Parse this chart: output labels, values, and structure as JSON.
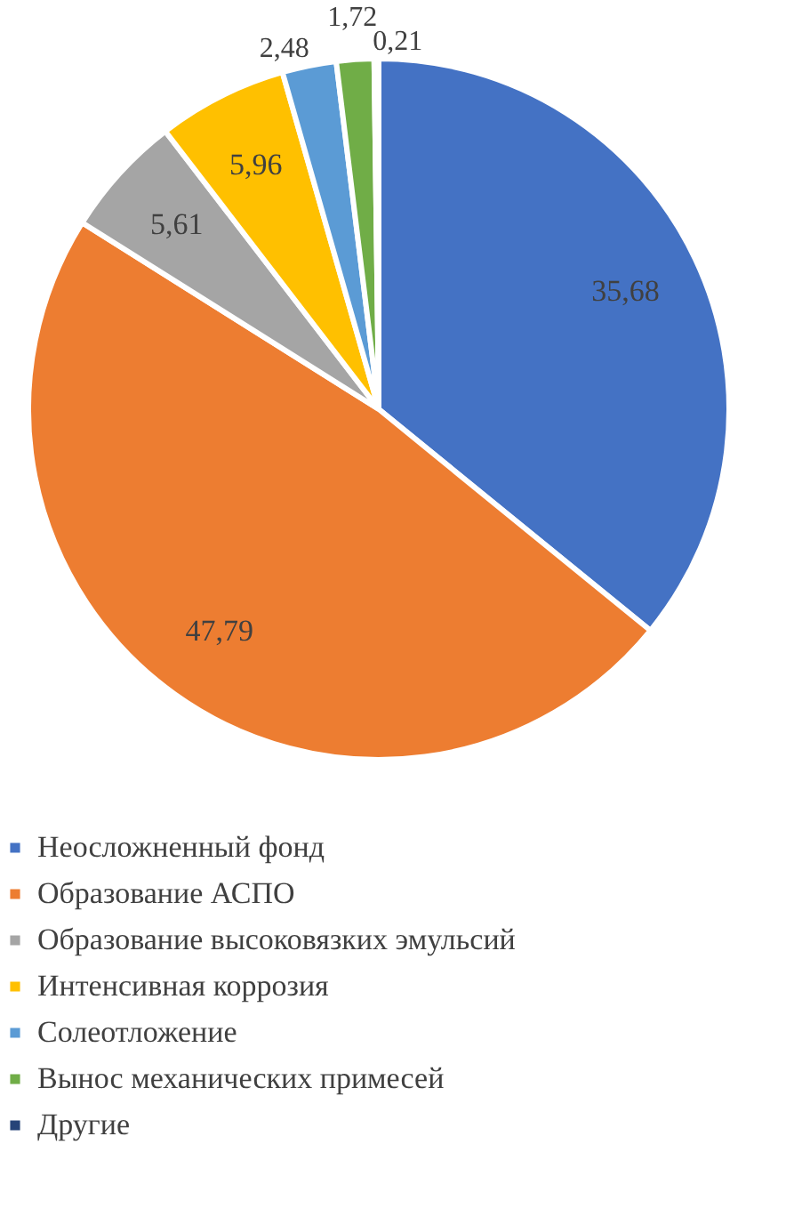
{
  "chart_data": {
    "type": "pie",
    "categories": [
      "Неосложненный фонд",
      "Образование АСПО",
      "Образование высоковязких эмульсий",
      "Интенсивная коррозия",
      "Солеотложение",
      "Вынос механических примесей",
      "Другие"
    ],
    "values": [
      35.68,
      47.79,
      5.61,
      5.96,
      2.48,
      1.72,
      0.21
    ],
    "value_labels": [
      "35,68",
      "47,79",
      "5,61",
      "5,96",
      "2,48",
      "1,72",
      "0,21"
    ],
    "colors": [
      "#4472c4",
      "#ed7d31",
      "#a5a5a5",
      "#ffc000",
      "#5b9bd5",
      "#70ad47",
      "#264478"
    ],
    "legend": "bottom"
  }
}
